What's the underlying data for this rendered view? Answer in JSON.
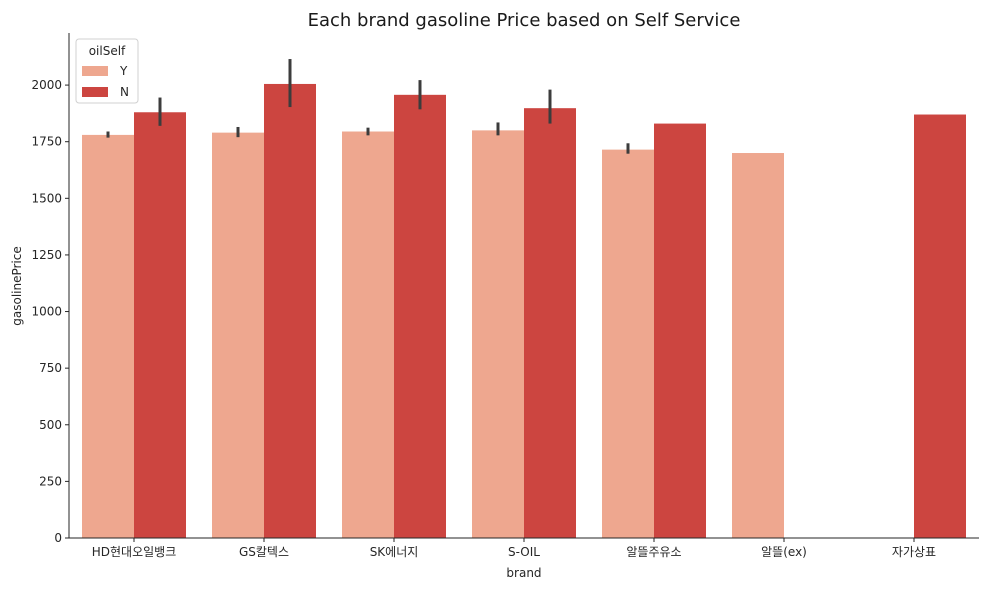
{
  "chart_data": {
    "type": "bar",
    "title": "Each brand gasoline Price based on Self Service",
    "xlabel": "brand",
    "ylabel": "gasolinePrice",
    "categories": [
      "HD현대오일뱅크",
      "GS칼텍스",
      "SK에너지",
      "S-OIL",
      "알뜰주유소",
      "알뜰(ex)",
      "자가상표"
    ],
    "ylim": [
      0,
      2230
    ],
    "yticks": [
      0,
      250,
      500,
      750,
      1000,
      1250,
      1500,
      1750,
      2000
    ],
    "legend": {
      "title": "oilSelf",
      "placement": "top-left"
    },
    "grid": false,
    "series": [
      {
        "name": "Y",
        "color": "#eea78f",
        "values": [
          1780,
          1790,
          1795,
          1800,
          1715,
          1700,
          null
        ],
        "error_low": [
          1768,
          1770,
          1778,
          1778,
          1697,
          null,
          null
        ],
        "error_high": [
          1795,
          1815,
          1812,
          1835,
          1743,
          null,
          null
        ]
      },
      {
        "name": "N",
        "color": "#cc4540",
        "values": [
          1880,
          2005,
          1957,
          1898,
          1830,
          null,
          1870
        ],
        "error_low": [
          1820,
          1903,
          1893,
          1830,
          null,
          null,
          null
        ],
        "error_high": [
          1945,
          2115,
          2022,
          1980,
          null,
          null,
          null
        ]
      }
    ],
    "error_bar_color": "#3c3c3c"
  }
}
